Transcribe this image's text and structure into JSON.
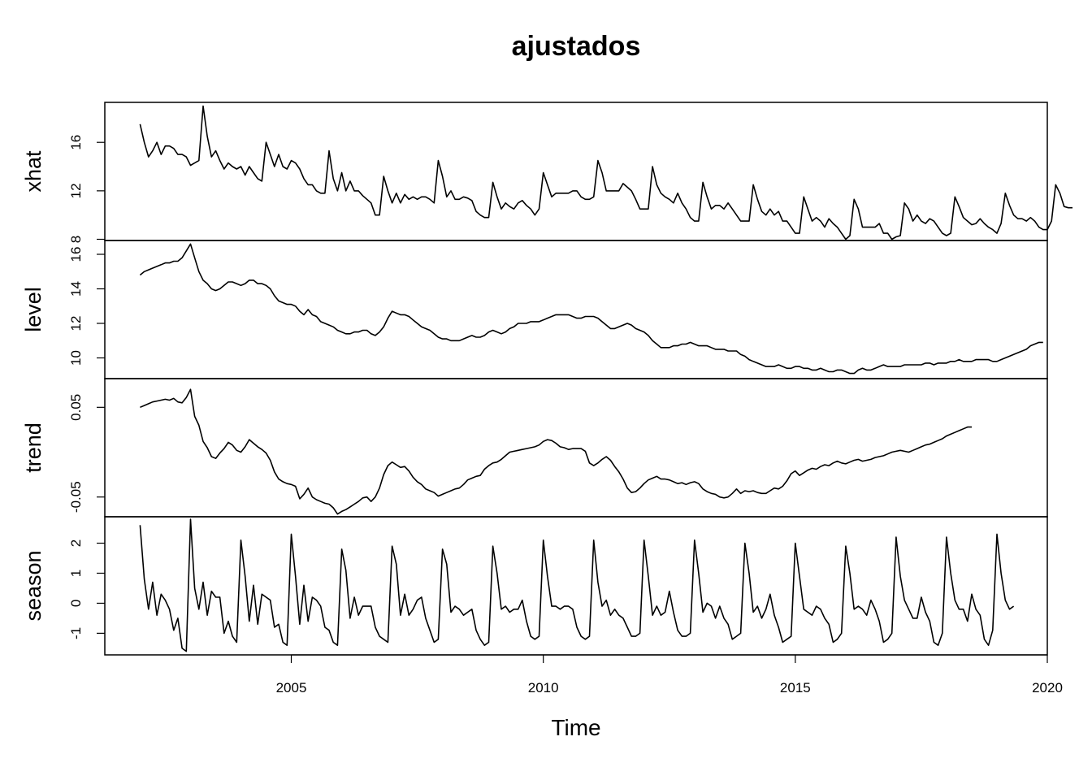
{
  "chart_data": {
    "type": "line",
    "title": "ajustados",
    "xlabel": "Time",
    "xlim": [
      2001.3,
      2020.0
    ],
    "x_ticks": [
      "2005",
      "2010",
      "2015",
      "2020"
    ],
    "x_start": 2002.0,
    "frequency": 12,
    "grid": false,
    "panels": [
      {
        "name": "xhat",
        "ylim": [
          7.9,
          19.3
        ],
        "y_ticks": [
          8,
          12,
          16
        ],
        "values": [
          17.5,
          16.0,
          14.8,
          15.3,
          16.0,
          15.0,
          15.7,
          15.7,
          15.5,
          15.0,
          15.0,
          14.8,
          14.1,
          14.3,
          14.5,
          19.0,
          16.5,
          14.8,
          15.3,
          14.5,
          13.8,
          14.3,
          14.0,
          13.8,
          14.0,
          13.3,
          14.0,
          13.5,
          13.0,
          12.8,
          16.0,
          15.0,
          14.0,
          15.0,
          14.0,
          13.8,
          14.5,
          14.3,
          13.8,
          13.0,
          12.5,
          12.5,
          12.0,
          11.8,
          11.8,
          15.3,
          13.0,
          12.0,
          13.5,
          12.0,
          12.8,
          12.0,
          12.0,
          11.6,
          11.3,
          11.0,
          10.0,
          10.0,
          13.2,
          12.0,
          11.0,
          11.8,
          11.0,
          11.7,
          11.3,
          11.5,
          11.3,
          11.5,
          11.5,
          11.3,
          11.0,
          14.5,
          13.2,
          11.5,
          12.0,
          11.3,
          11.3,
          11.5,
          11.4,
          11.2,
          10.3,
          10.0,
          9.8,
          9.8,
          12.7,
          11.5,
          10.5,
          11.0,
          10.7,
          10.5,
          11.0,
          11.2,
          10.8,
          10.5,
          10.0,
          10.5,
          13.5,
          12.5,
          11.5,
          11.8,
          11.8,
          11.8,
          11.8,
          12.0,
          12.0,
          11.5,
          11.3,
          11.3,
          11.5,
          14.5,
          13.5,
          12.0,
          12.0,
          12.0,
          12.0,
          12.6,
          12.3,
          12.0,
          11.3,
          10.5,
          10.5,
          10.5,
          14.0,
          12.5,
          11.8,
          11.5,
          11.3,
          11.0,
          11.8,
          11.0,
          10.5,
          9.8,
          9.5,
          9.5,
          12.7,
          11.5,
          10.5,
          10.8,
          10.8,
          10.5,
          11.0,
          10.5,
          10.0,
          9.5,
          9.5,
          9.5,
          12.5,
          11.3,
          10.3,
          10.0,
          10.5,
          10.0,
          10.3,
          9.5,
          9.5,
          9.0,
          8.5,
          8.5,
          11.5,
          10.5,
          9.5,
          9.8,
          9.5,
          9.0,
          9.7,
          9.3,
          9.0,
          8.5,
          8.0,
          8.3,
          11.3,
          10.5,
          9.0,
          9.0,
          9.0,
          9.0,
          9.3,
          8.5,
          8.5,
          8.0,
          8.2,
          8.3,
          11.0,
          10.5,
          9.5,
          10.0,
          9.5,
          9.3,
          9.7,
          9.5,
          9.0,
          8.5,
          8.3,
          8.5,
          11.5,
          10.7,
          9.8,
          9.5,
          9.2,
          9.3,
          9.7,
          9.3,
          9.0,
          8.8,
          8.5,
          9.3,
          11.8,
          10.8,
          10.0,
          9.7,
          9.7,
          9.5,
          9.8,
          9.5,
          9.0,
          8.8,
          8.8,
          9.5,
          12.5,
          11.8,
          10.7,
          10.6,
          10.6
        ]
      },
      {
        "name": "level",
        "ylim": [
          8.8,
          16.8
        ],
        "y_ticks": [
          10,
          12,
          14,
          16
        ],
        "values": [
          14.8,
          15.0,
          15.1,
          15.2,
          15.3,
          15.4,
          15.5,
          15.5,
          15.6,
          15.6,
          15.8,
          16.2,
          16.6,
          15.8,
          15.0,
          14.5,
          14.3,
          14.0,
          13.9,
          14.0,
          14.2,
          14.4,
          14.4,
          14.3,
          14.2,
          14.3,
          14.5,
          14.5,
          14.3,
          14.3,
          14.2,
          14.0,
          13.6,
          13.3,
          13.2,
          13.1,
          13.1,
          13.0,
          12.7,
          12.5,
          12.8,
          12.5,
          12.4,
          12.1,
          12.0,
          11.9,
          11.8,
          11.6,
          11.5,
          11.4,
          11.4,
          11.5,
          11.5,
          11.6,
          11.6,
          11.4,
          11.3,
          11.5,
          11.8,
          12.3,
          12.7,
          12.6,
          12.5,
          12.5,
          12.4,
          12.2,
          12.0,
          11.8,
          11.7,
          11.6,
          11.4,
          11.2,
          11.1,
          11.1,
          11.0,
          11.0,
          11.0,
          11.1,
          11.2,
          11.3,
          11.2,
          11.2,
          11.3,
          11.5,
          11.6,
          11.5,
          11.4,
          11.5,
          11.7,
          11.8,
          12.0,
          12.0,
          12.0,
          12.1,
          12.1,
          12.1,
          12.2,
          12.3,
          12.4,
          12.5,
          12.5,
          12.5,
          12.5,
          12.4,
          12.3,
          12.3,
          12.4,
          12.4,
          12.4,
          12.3,
          12.1,
          11.9,
          11.7,
          11.7,
          11.8,
          11.9,
          12.0,
          11.9,
          11.7,
          11.6,
          11.5,
          11.3,
          11.0,
          10.8,
          10.6,
          10.6,
          10.6,
          10.7,
          10.7,
          10.8,
          10.8,
          10.9,
          10.8,
          10.7,
          10.7,
          10.7,
          10.6,
          10.5,
          10.5,
          10.5,
          10.4,
          10.4,
          10.4,
          10.2,
          10.1,
          9.9,
          9.8,
          9.7,
          9.6,
          9.5,
          9.5,
          9.5,
          9.6,
          9.5,
          9.4,
          9.4,
          9.5,
          9.5,
          9.4,
          9.4,
          9.3,
          9.3,
          9.4,
          9.3,
          9.2,
          9.2,
          9.3,
          9.3,
          9.2,
          9.1,
          9.1,
          9.3,
          9.4,
          9.3,
          9.3,
          9.4,
          9.5,
          9.6,
          9.5,
          9.5,
          9.5,
          9.5,
          9.6,
          9.6,
          9.6,
          9.6,
          9.6,
          9.7,
          9.7,
          9.6,
          9.7,
          9.7,
          9.7,
          9.8,
          9.8,
          9.9,
          9.8,
          9.8,
          9.8,
          9.9,
          9.9,
          9.9,
          9.9,
          9.8,
          9.8,
          9.9,
          10.0,
          10.1,
          10.2,
          10.3,
          10.4,
          10.5,
          10.7,
          10.8,
          10.9,
          10.9
        ]
      },
      {
        "name": "trend",
        "ylim": [
          -0.072,
          0.082
        ],
        "y_ticks": [
          -0.05,
          0.05
        ],
        "y_tick_labels": [
          "-0.05",
          "0.05"
        ],
        "values": [
          0.05,
          0.052,
          0.054,
          0.056,
          0.057,
          0.058,
          0.059,
          0.058,
          0.06,
          0.056,
          0.055,
          0.061,
          0.07,
          0.04,
          0.03,
          0.012,
          0.005,
          -0.005,
          -0.007,
          -0.001,
          0.004,
          0.011,
          0.008,
          0.002,
          0.0,
          0.006,
          0.014,
          0.01,
          0.006,
          0.003,
          -0.001,
          -0.009,
          -0.022,
          -0.03,
          -0.033,
          -0.035,
          -0.036,
          -0.038,
          -0.052,
          -0.047,
          -0.04,
          -0.05,
          -0.053,
          -0.055,
          -0.057,
          -0.058,
          -0.062,
          -0.069,
          -0.066,
          -0.064,
          -0.061,
          -0.058,
          -0.055,
          -0.051,
          -0.05,
          -0.055,
          -0.05,
          -0.04,
          -0.025,
          -0.015,
          -0.011,
          -0.014,
          -0.017,
          -0.016,
          -0.021,
          -0.028,
          -0.033,
          -0.036,
          -0.041,
          -0.043,
          -0.045,
          -0.049,
          -0.047,
          -0.045,
          -0.043,
          -0.041,
          -0.04,
          -0.036,
          -0.031,
          -0.029,
          -0.027,
          -0.026,
          -0.019,
          -0.015,
          -0.012,
          -0.011,
          -0.008,
          -0.004,
          0.0,
          0.001,
          0.002,
          0.003,
          0.004,
          0.005,
          0.006,
          0.008,
          0.012,
          0.014,
          0.013,
          0.01,
          0.006,
          0.005,
          0.003,
          0.004,
          0.004,
          0.004,
          0.001,
          -0.012,
          -0.015,
          -0.012,
          -0.008,
          -0.005,
          -0.009,
          -0.016,
          -0.022,
          -0.03,
          -0.04,
          -0.045,
          -0.044,
          -0.04,
          -0.035,
          -0.031,
          -0.029,
          -0.027,
          -0.03,
          -0.03,
          -0.031,
          -0.033,
          -0.035,
          -0.034,
          -0.036,
          -0.034,
          -0.033,
          -0.035,
          -0.041,
          -0.044,
          -0.046,
          -0.047,
          -0.05,
          -0.051,
          -0.05,
          -0.046,
          -0.041,
          -0.046,
          -0.043,
          -0.044,
          -0.043,
          -0.045,
          -0.046,
          -0.046,
          -0.043,
          -0.04,
          -0.041,
          -0.038,
          -0.032,
          -0.024,
          -0.021,
          -0.026,
          -0.023,
          -0.02,
          -0.018,
          -0.019,
          -0.016,
          -0.014,
          -0.015,
          -0.012,
          -0.01,
          -0.012,
          -0.013,
          -0.011,
          -0.009,
          -0.008,
          -0.01,
          -0.009,
          -0.008,
          -0.006,
          -0.005,
          -0.004,
          -0.002,
          0.0,
          0.001,
          0.002,
          0.001,
          0.0,
          0.002,
          0.004,
          0.006,
          0.008,
          0.009,
          0.011,
          0.013,
          0.015,
          0.018,
          0.02,
          0.022,
          0.024,
          0.026,
          0.028,
          0.028
        ]
      },
      {
        "name": "season",
        "ylim": [
          -1.72,
          2.88
        ],
        "y_ticks": [
          -1,
          0,
          1,
          2
        ],
        "values": [
          2.6,
          0.8,
          -0.2,
          0.7,
          -0.4,
          0.3,
          0.1,
          -0.2,
          -0.9,
          -0.5,
          -1.5,
          -1.6,
          2.8,
          0.5,
          -0.2,
          0.7,
          -0.4,
          0.4,
          0.2,
          0.2,
          -1.0,
          -0.6,
          -1.1,
          -1.3,
          2.1,
          0.9,
          -0.6,
          0.6,
          -0.7,
          0.3,
          0.2,
          0.1,
          -0.8,
          -0.7,
          -1.3,
          -1.4,
          2.3,
          0.9,
          -0.7,
          0.6,
          -0.6,
          0.2,
          0.1,
          -0.1,
          -0.8,
          -0.9,
          -1.3,
          -1.4,
          1.8,
          1.1,
          -0.5,
          0.2,
          -0.4,
          -0.1,
          -0.1,
          -0.1,
          -0.8,
          -1.1,
          -1.2,
          -1.3,
          1.9,
          1.3,
          -0.4,
          0.3,
          -0.4,
          -0.2,
          0.1,
          0.2,
          -0.5,
          -0.9,
          -1.3,
          -1.2,
          1.8,
          1.3,
          -0.3,
          -0.1,
          -0.2,
          -0.4,
          -0.3,
          -0.2,
          -0.9,
          -1.2,
          -1.4,
          -1.3,
          1.9,
          1.0,
          -0.2,
          -0.1,
          -0.3,
          -0.2,
          -0.2,
          0.1,
          -0.6,
          -1.1,
          -1.2,
          -1.1,
          2.1,
          0.9,
          -0.1,
          -0.1,
          -0.2,
          -0.1,
          -0.1,
          -0.2,
          -0.8,
          -1.1,
          -1.2,
          -1.1,
          2.1,
          0.7,
          -0.1,
          0.1,
          -0.4,
          -0.2,
          -0.4,
          -0.5,
          -0.8,
          -1.1,
          -1.1,
          -1.0,
          2.1,
          0.9,
          -0.4,
          -0.1,
          -0.4,
          -0.3,
          0.4,
          -0.3,
          -0.9,
          -1.1,
          -1.1,
          -1.0,
          2.1,
          1.0,
          -0.3,
          0.0,
          -0.1,
          -0.5,
          -0.1,
          -0.5,
          -0.7,
          -1.2,
          -1.1,
          -1.0,
          2.0,
          1.0,
          -0.3,
          -0.1,
          -0.5,
          -0.2,
          0.3,
          -0.4,
          -0.8,
          -1.3,
          -1.2,
          -1.1,
          2.0,
          0.9,
          -0.2,
          -0.3,
          -0.4,
          -0.1,
          -0.2,
          -0.5,
          -0.7,
          -1.3,
          -1.2,
          -1.0,
          1.9,
          1.0,
          -0.2,
          -0.1,
          -0.2,
          -0.4,
          0.1,
          -0.2,
          -0.6,
          -1.3,
          -1.2,
          -1.0,
          2.2,
          0.9,
          0.1,
          -0.2,
          -0.5,
          -0.5,
          0.2,
          -0.3,
          -0.6,
          -1.3,
          -1.4,
          -1.0,
          2.2,
          1.0,
          0.1,
          -0.2,
          -0.2,
          -0.6,
          0.3,
          -0.2,
          -0.4,
          -1.2,
          -1.4,
          -0.9,
          2.3,
          1.0,
          0.1,
          -0.2,
          -0.1
        ]
      }
    ]
  }
}
